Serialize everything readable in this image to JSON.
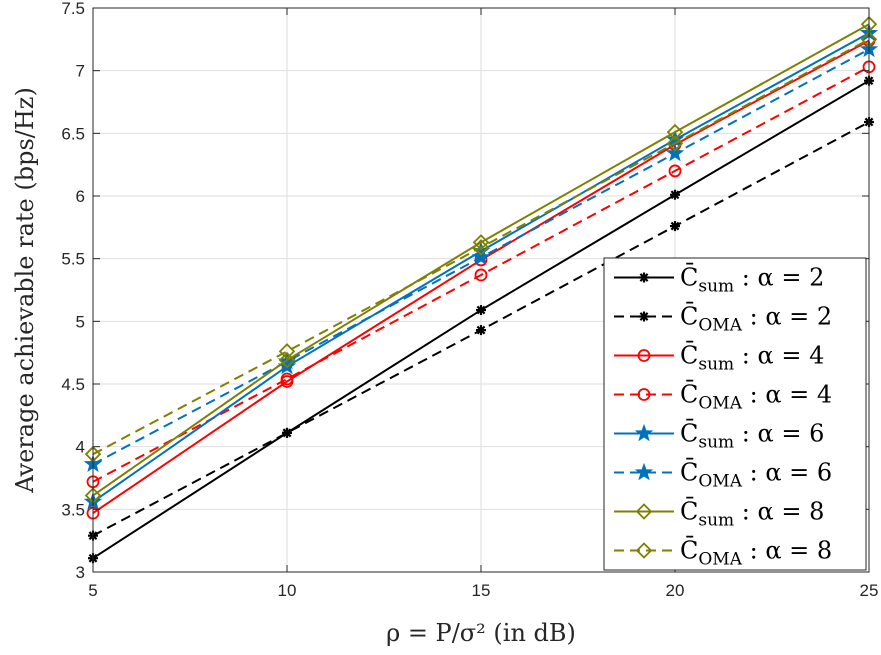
{
  "chart_data": {
    "type": "line",
    "xlabel": "ρ = P/σ² (in dB)",
    "ylabel": "Average achievable rate (bps/Hz)",
    "x": [
      5,
      10,
      15,
      20,
      25
    ],
    "xlim": [
      5,
      25
    ],
    "ylim": [
      3,
      7.5
    ],
    "xticks": [
      "5",
      "10",
      "15",
      "20",
      "25"
    ],
    "yticks": [
      "3",
      "3.5",
      "4",
      "4.5",
      "5",
      "5.5",
      "6",
      "6.5",
      "7",
      "7.5"
    ],
    "grid": true,
    "legend_position": "bottom-right",
    "series": [
      {
        "name": "C̄sum : α = 2",
        "legend_base": "C̄",
        "legend_sub": "sum",
        "legend_rest": " : α = 2",
        "values": [
          3.11,
          4.11,
          5.09,
          6.01,
          6.92
        ],
        "color": "#000000",
        "dash": "solid",
        "marker": "asterisk"
      },
      {
        "name": "C̄OMA : α = 2",
        "legend_base": "C̄",
        "legend_sub": "OMA",
        "legend_rest": " : α = 2",
        "values": [
          3.29,
          4.11,
          4.93,
          5.76,
          6.59
        ],
        "color": "#000000",
        "dash": "dashed",
        "marker": "asterisk"
      },
      {
        "name": "C̄sum : α = 4",
        "legend_base": "C̄",
        "legend_sub": "sum",
        "legend_rest": " : α = 4",
        "values": [
          3.47,
          4.52,
          5.49,
          6.41,
          7.24
        ],
        "color": "#ff0000",
        "dash": "solid",
        "marker": "circle"
      },
      {
        "name": "C̄OMA : α = 4",
        "legend_base": "C̄",
        "legend_sub": "OMA",
        "legend_rest": " : α = 4",
        "values": [
          3.72,
          4.54,
          5.37,
          6.2,
          7.03
        ],
        "color": "#ff0000",
        "dash": "dashed",
        "marker": "circle"
      },
      {
        "name": "C̄sum : α = 6",
        "legend_base": "C̄",
        "legend_sub": "sum",
        "legend_rest": " : α = 6",
        "values": [
          3.56,
          4.64,
          5.56,
          6.45,
          7.3
        ],
        "color": "#0072bd",
        "dash": "solid",
        "marker": "star"
      },
      {
        "name": "C̄OMA : α = 6",
        "legend_base": "C̄",
        "legend_sub": "OMA",
        "legend_rest": " : α = 6",
        "values": [
          3.86,
          4.68,
          5.51,
          6.34,
          7.17
        ],
        "color": "#0072bd",
        "dash": "dashed",
        "marker": "star"
      },
      {
        "name": "C̄sum : α = 8",
        "legend_base": "C̄",
        "legend_sub": "sum",
        "legend_rest": " : α = 8",
        "values": [
          3.61,
          4.69,
          5.63,
          6.51,
          7.37
        ],
        "color": "#808000",
        "dash": "solid",
        "marker": "diamond"
      },
      {
        "name": "C̄OMA : α = 8",
        "legend_base": "C̄",
        "legend_sub": "OMA",
        "legend_rest": " : α = 8",
        "values": [
          3.94,
          4.76,
          5.59,
          6.42,
          7.25
        ],
        "color": "#808000",
        "dash": "dashed",
        "marker": "diamond"
      }
    ]
  }
}
